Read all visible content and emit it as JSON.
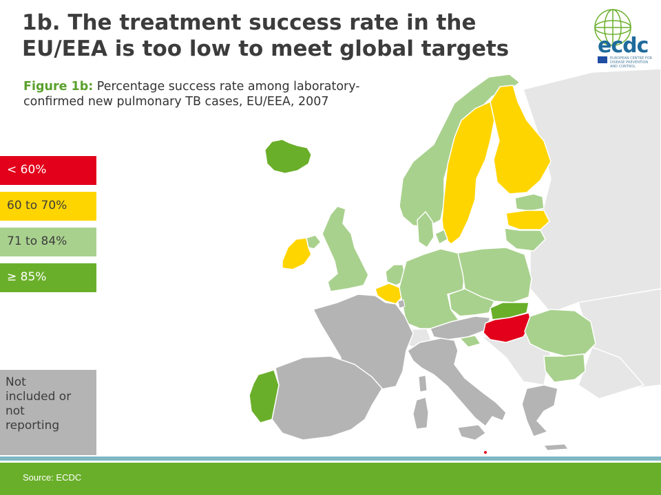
{
  "title": {
    "line1": "1b. The treatment success rate in the",
    "line2": "EU/EEA is too low to meet global targets"
  },
  "subtitle": {
    "lead": "Figure 1b:",
    "line1_rest": " Percentage success rate among laboratory-",
    "line2": "confirmed new pulmonary TB cases, EU/EEA, 2007"
  },
  "legend": {
    "items": [
      {
        "label": "< 60%",
        "color": "#e2001a"
      },
      {
        "label": "60 to 70%",
        "color": "#ffd500"
      },
      {
        "label": "71 to 84%",
        "color": "#a9d18e"
      },
      {
        "label": "≥ 85%",
        "color": "#6aaf2a"
      }
    ],
    "not_included": [
      "Not",
      "included or",
      "not",
      "reporting"
    ],
    "not_included_color": "#b4b4b4"
  },
  "source": "Source: ECDC",
  "logo": {
    "name": "ecdc",
    "line1": "EUROPEAN CENTRE FOR",
    "line2": "DISEASE PREVENTION",
    "line3": "AND CONTROL"
  },
  "colors": {
    "under_60": "#e2001a",
    "60_70": "#ffd500",
    "71_84": "#a9d18e",
    "85_plus": "#6aaf2a",
    "not_included": "#b4b4b4",
    "non_eu": "#e6e6e6"
  },
  "countries": {
    "under_60": [
      "Hungary"
    ],
    "60_70": [
      "Sweden",
      "Finland",
      "Ireland",
      "Belgium",
      "Latvia"
    ],
    "71_84": [
      "Norway",
      "United Kingdom",
      "Denmark",
      "Netherlands",
      "Germany",
      "Poland",
      "Czech Republic",
      "Romania",
      "Bulgaria",
      "Estonia",
      "Lithuania",
      "Slovenia",
      "Northern Ireland"
    ],
    "85_plus": [
      "Iceland",
      "Portugal",
      "Slovakia"
    ],
    "not_included": [
      "France",
      "Spain",
      "Italy",
      "Austria",
      "Greece",
      "Luxembourg",
      "Sardinia",
      "Corsica",
      "Sicily"
    ]
  }
}
